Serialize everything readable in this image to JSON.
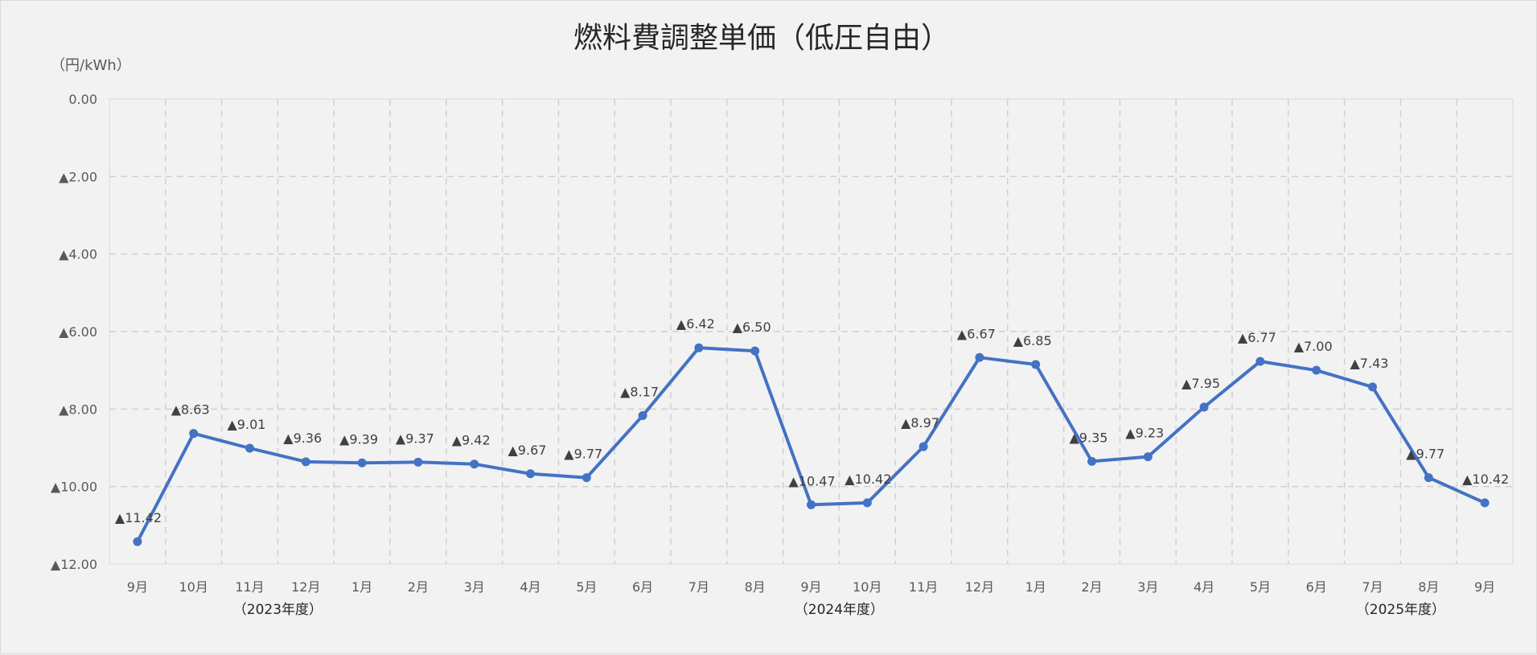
{
  "chart_data": {
    "type": "line",
    "title": "燃料費調整単価（低圧自由）",
    "unit_label": "（円/kWh）",
    "ylim": [
      -12,
      0
    ],
    "y_ticks": [
      {
        "value": 0,
        "label": "0.00"
      },
      {
        "value": -2,
        "label": "▲2.00"
      },
      {
        "value": -4,
        "label": "▲4.00"
      },
      {
        "value": -6,
        "label": "▲6.00"
      },
      {
        "value": -8,
        "label": "▲8.00"
      },
      {
        "value": -10,
        "label": "▲10.00"
      },
      {
        "value": -12,
        "label": "▲12.00"
      }
    ],
    "grid": true,
    "line_color": "#4472c4",
    "categories": [
      "9月",
      "10月",
      "11月",
      "12月",
      "1月",
      "2月",
      "3月",
      "4月",
      "5月",
      "6月",
      "7月",
      "8月",
      "9月",
      "10月",
      "11月",
      "12月",
      "1月",
      "2月",
      "3月",
      "4月",
      "5月",
      "6月",
      "7月",
      "8月",
      "9月"
    ],
    "values": [
      -11.42,
      -8.63,
      -9.01,
      -9.36,
      -9.39,
      -9.37,
      -9.42,
      -9.67,
      -9.77,
      -8.17,
      -6.42,
      -6.5,
      -10.47,
      -10.42,
      -8.97,
      -6.67,
      -6.85,
      -9.35,
      -9.23,
      -7.95,
      -6.77,
      -7.0,
      -7.43,
      -9.77,
      -10.42
    ],
    "data_labels": [
      "▲11.42",
      "▲8.63",
      "▲9.01",
      "▲9.36",
      "▲9.39",
      "▲9.37",
      "▲9.42",
      "▲9.67",
      "▲9.77",
      "▲8.17",
      "▲6.42",
      "▲6.50",
      "▲10.47",
      "▲10.42",
      "▲8.97",
      "▲6.67",
      "▲6.85",
      "▲9.35",
      "▲9.23",
      "▲7.95",
      "▲6.77",
      "▲7.00",
      "▲7.43",
      "▲9.77",
      "▲10.42"
    ],
    "fiscal_years": [
      {
        "label": "（2023年度）",
        "category_index": 2.5
      },
      {
        "label": "（2024年度）",
        "category_index": 12.5
      },
      {
        "label": "（2025年度）",
        "category_index": 22.5
      }
    ]
  }
}
